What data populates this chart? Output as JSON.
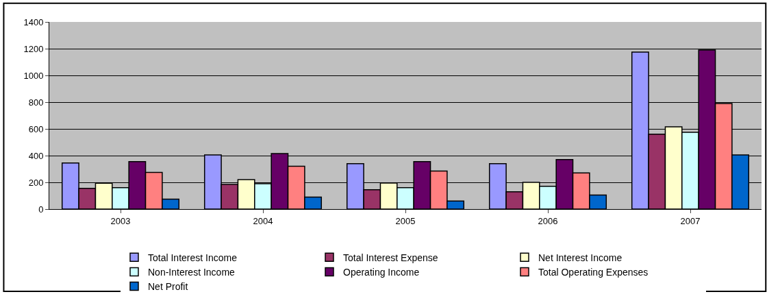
{
  "chart_data": {
    "type": "bar",
    "categories": [
      "2003",
      "2004",
      "2005",
      "2006",
      "2007"
    ],
    "series": [
      {
        "name": "Total Interest Income",
        "color": "#9999ff",
        "values": [
          345,
          405,
          340,
          340,
          1175
        ]
      },
      {
        "name": "Total Interest Expense",
        "color": "#993366",
        "values": [
          155,
          185,
          145,
          130,
          560
        ]
      },
      {
        "name": "Net Interest Income",
        "color": "#ffffcc",
        "values": [
          193,
          220,
          195,
          200,
          615
        ]
      },
      {
        "name": "Non-Interest Income",
        "color": "#ccffff",
        "values": [
          160,
          190,
          160,
          170,
          575
        ]
      },
      {
        "name": "Operating Income",
        "color": "#660066",
        "values": [
          355,
          415,
          355,
          370,
          1190
        ]
      },
      {
        "name": "Total Operating Expenses",
        "color": "#ff8080",
        "values": [
          275,
          320,
          285,
          270,
          790
        ]
      },
      {
        "name": "Net Profit",
        "color": "#0066cc",
        "values": [
          75,
          90,
          60,
          105,
          405
        ]
      }
    ],
    "ylim": [
      0,
      1400
    ],
    "yticks": [
      0,
      200,
      400,
      600,
      800,
      1000,
      1200,
      1400
    ],
    "grid": "y",
    "legend": "bottom"
  }
}
